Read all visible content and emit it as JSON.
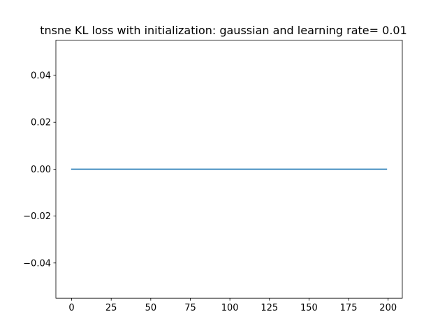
{
  "chart_data": {
    "type": "line",
    "title": "tnsne KL loss with initialization: gaussian and learning rate= 0.01",
    "xlabel": "",
    "ylabel": "",
    "xlim": [
      -9.95,
      208.95
    ],
    "ylim": [
      -0.055,
      0.055
    ],
    "xticks": [
      0,
      25,
      50,
      75,
      100,
      125,
      150,
      175,
      200
    ],
    "yticks": [
      -0.04,
      -0.02,
      0.0,
      0.02,
      0.04
    ],
    "ytick_labels": [
      "−0.04",
      "−0.02",
      "0.00",
      "0.02",
      "0.04"
    ],
    "grid": false,
    "series": [
      {
        "color": "#1f77b4",
        "x": [
          0,
          199
        ],
        "y": [
          0,
          0
        ]
      }
    ]
  }
}
